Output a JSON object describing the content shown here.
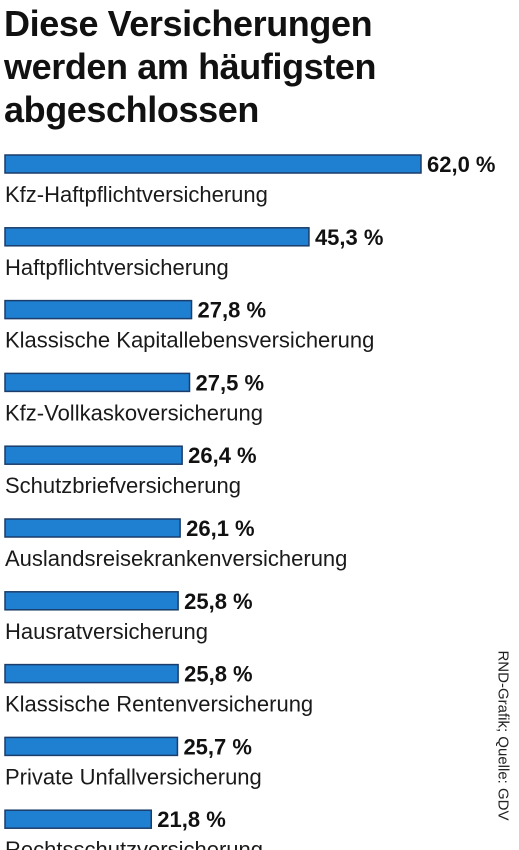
{
  "source": "RND-Grafik; Quelle: GDV",
  "chart_data": {
    "type": "bar",
    "orientation": "horizontal",
    "title": "Diese Versicherungen werden am häufigsten abgeschlossen",
    "xlabel": "",
    "ylabel": "",
    "unit": "%",
    "xlim": [
      0,
      62
    ],
    "grid": false,
    "legend": "none",
    "bar_color": "#1f7fd0",
    "bar_edge_color": "#1a3d6b",
    "categories": [
      "Kfz-Haftpflichtversicherung",
      "Haftpflichtversicherung",
      "Klassische Kapitallebensversicherung",
      "Kfz-Vollkaskoversicherung",
      "Schutzbriefversicherung",
      "Auslandsreisekrankenversicherung",
      "Hausratversicherung",
      "Klassische Rentenversicherung",
      "Private Unfallversicherung",
      "Rechtsschutzversicherung"
    ],
    "values": [
      62.0,
      45.3,
      27.8,
      27.5,
      26.4,
      26.1,
      25.8,
      25.8,
      25.7,
      21.8
    ],
    "value_labels": [
      "62,0 %",
      "45,3 %",
      "27,8 %",
      "27,5 %",
      "26,4 %",
      "26,1 %",
      "25,8 %",
      "25,8 %",
      "25,7 %",
      "21,8 %"
    ]
  }
}
